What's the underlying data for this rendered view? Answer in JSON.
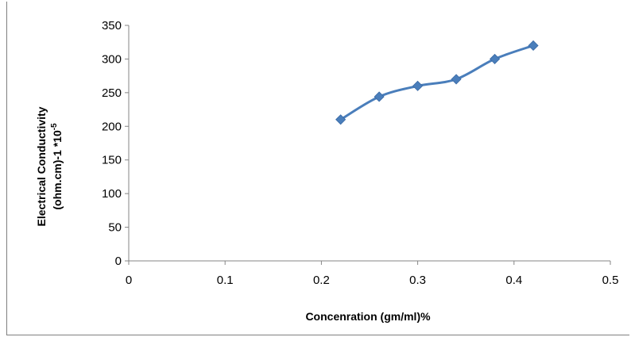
{
  "chart_data": {
    "type": "scatter",
    "title": "",
    "xlabel": "Concenration (gm/ml)%",
    "ylabel_line1": "Electrical Conductivity",
    "ylabel_line2_main": "(ohm.cm)-1   *10",
    "ylabel_line2_sup": "-5",
    "xlim": [
      0,
      0.5
    ],
    "ylim": [
      0,
      350
    ],
    "x_ticks": [
      0,
      0.1,
      0.2,
      0.3,
      0.4,
      0.5
    ],
    "x_tick_labels": [
      "0",
      "0.1",
      "0.2",
      "0.3",
      "0.4",
      "0.5"
    ],
    "y_ticks": [
      0,
      50,
      100,
      150,
      200,
      250,
      300,
      350
    ],
    "y_tick_labels": [
      "0",
      "50",
      "100",
      "150",
      "200",
      "250",
      "300",
      "350"
    ],
    "grid": false,
    "legend": "none",
    "series": [
      {
        "x": [
          0.22,
          0.26,
          0.3,
          0.34,
          0.38,
          0.42
        ],
        "y": [
          210,
          244,
          260,
          270,
          300,
          320
        ],
        "color": "#4a7ebb",
        "marker": "diamond",
        "line": "smooth"
      }
    ]
  }
}
